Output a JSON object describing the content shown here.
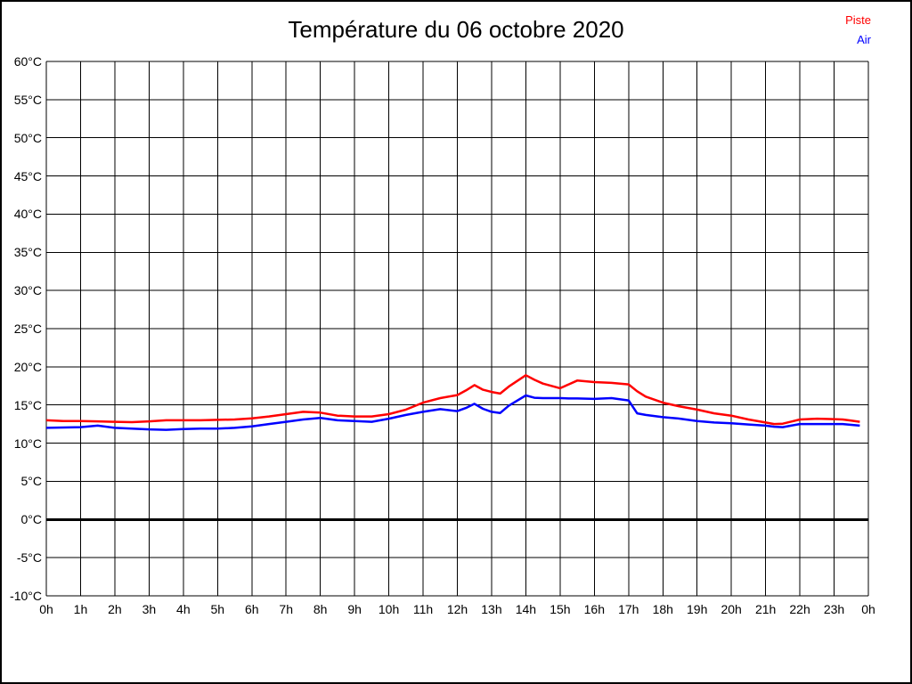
{
  "title": "Température du 06 octobre 2020",
  "legend": [
    {
      "label": "Piste",
      "color": "#ff0000"
    },
    {
      "label": "Air",
      "color": "#0000ff"
    }
  ],
  "colors": {
    "piste": "#ff0000",
    "air": "#0000ff",
    "grid": "#000000",
    "background": "#ffffff"
  },
  "chart_data": {
    "type": "line",
    "title": "Température du 06 octobre 2020",
    "xlabel": "",
    "ylabel": "",
    "xlim": [
      0,
      24
    ],
    "ylim": [
      -10,
      60
    ],
    "grid": true,
    "zero_line_thick": true,
    "legend_position": "top-right",
    "x_ticks": [
      {
        "v": 0,
        "label": "0h"
      },
      {
        "v": 1,
        "label": "1h"
      },
      {
        "v": 2,
        "label": "2h"
      },
      {
        "v": 3,
        "label": "3h"
      },
      {
        "v": 4,
        "label": "4h"
      },
      {
        "v": 5,
        "label": "5h"
      },
      {
        "v": 6,
        "label": "6h"
      },
      {
        "v": 7,
        "label": "7h"
      },
      {
        "v": 8,
        "label": "8h"
      },
      {
        "v": 9,
        "label": "9h"
      },
      {
        "v": 10,
        "label": "10h"
      },
      {
        "v": 11,
        "label": "11h"
      },
      {
        "v": 12,
        "label": "12h"
      },
      {
        "v": 13,
        "label": "13h"
      },
      {
        "v": 14,
        "label": "14h"
      },
      {
        "v": 15,
        "label": "15h"
      },
      {
        "v": 16,
        "label": "16h"
      },
      {
        "v": 17,
        "label": "17h"
      },
      {
        "v": 18,
        "label": "18h"
      },
      {
        "v": 19,
        "label": "19h"
      },
      {
        "v": 20,
        "label": "20h"
      },
      {
        "v": 21,
        "label": "21h"
      },
      {
        "v": 22,
        "label": "22h"
      },
      {
        "v": 23,
        "label": "23h"
      },
      {
        "v": 24,
        "label": "0h"
      }
    ],
    "y_ticks": [
      {
        "v": 60,
        "label": "60°C"
      },
      {
        "v": 55,
        "label": "55°C"
      },
      {
        "v": 50,
        "label": "50°C"
      },
      {
        "v": 45,
        "label": "45°C"
      },
      {
        "v": 40,
        "label": "40°C"
      },
      {
        "v": 35,
        "label": "35°C"
      },
      {
        "v": 30,
        "label": "30°C"
      },
      {
        "v": 25,
        "label": "25°C"
      },
      {
        "v": 20,
        "label": "20°C"
      },
      {
        "v": 15,
        "label": "15°C"
      },
      {
        "v": 10,
        "label": "10°C"
      },
      {
        "v": 5,
        "label": "5°C"
      },
      {
        "v": 0,
        "label": "0°C"
      },
      {
        "v": -5,
        "label": "-5°C"
      },
      {
        "v": -10,
        "label": "-10°C"
      }
    ],
    "x": [
      0,
      0.5,
      1,
      1.5,
      2,
      2.5,
      3,
      3.5,
      4,
      4.5,
      5,
      5.5,
      6,
      6.5,
      7,
      7.5,
      8,
      8.5,
      9,
      9.5,
      10,
      10.5,
      11,
      11.5,
      12,
      12.25,
      12.5,
      12.75,
      13,
      13.25,
      13.5,
      14,
      14.25,
      14.5,
      15,
      15.25,
      15.5,
      16,
      16.5,
      17,
      17.25,
      17.5,
      18,
      18.5,
      19,
      19.5,
      20,
      20.5,
      21,
      21.25,
      21.5,
      22,
      22.5,
      23,
      23.25,
      23.5,
      23.75
    ],
    "series": [
      {
        "name": "Piste",
        "color": "#ff0000",
        "values": [
          13.0,
          12.9,
          12.9,
          12.85,
          12.8,
          12.75,
          12.85,
          13.0,
          13.0,
          13.0,
          13.05,
          13.1,
          13.25,
          13.5,
          13.8,
          14.1,
          14.0,
          13.6,
          13.5,
          13.5,
          13.8,
          14.4,
          15.3,
          15.9,
          16.3,
          16.9,
          17.6,
          17.0,
          16.7,
          16.5,
          17.4,
          18.9,
          18.3,
          17.8,
          17.2,
          17.7,
          18.2,
          18.0,
          17.9,
          17.7,
          16.8,
          16.1,
          15.3,
          14.8,
          14.4,
          13.9,
          13.6,
          13.1,
          12.7,
          12.5,
          12.55,
          13.1,
          13.2,
          13.15,
          13.1,
          12.95,
          12.8
        ]
      },
      {
        "name": "Air",
        "color": "#0000ff",
        "values": [
          12.0,
          12.05,
          12.1,
          12.3,
          12.0,
          11.9,
          11.8,
          11.75,
          11.85,
          11.9,
          11.9,
          12.0,
          12.2,
          12.5,
          12.8,
          13.1,
          13.3,
          13.0,
          12.9,
          12.8,
          13.2,
          13.7,
          14.1,
          14.45,
          14.2,
          14.6,
          15.15,
          14.5,
          14.1,
          13.95,
          14.9,
          16.25,
          15.95,
          15.9,
          15.9,
          15.85,
          15.85,
          15.8,
          15.9,
          15.6,
          13.9,
          13.7,
          13.4,
          13.2,
          12.9,
          12.7,
          12.6,
          12.45,
          12.3,
          12.15,
          12.1,
          12.5,
          12.5,
          12.5,
          12.5,
          12.4,
          12.3
        ]
      }
    ]
  }
}
